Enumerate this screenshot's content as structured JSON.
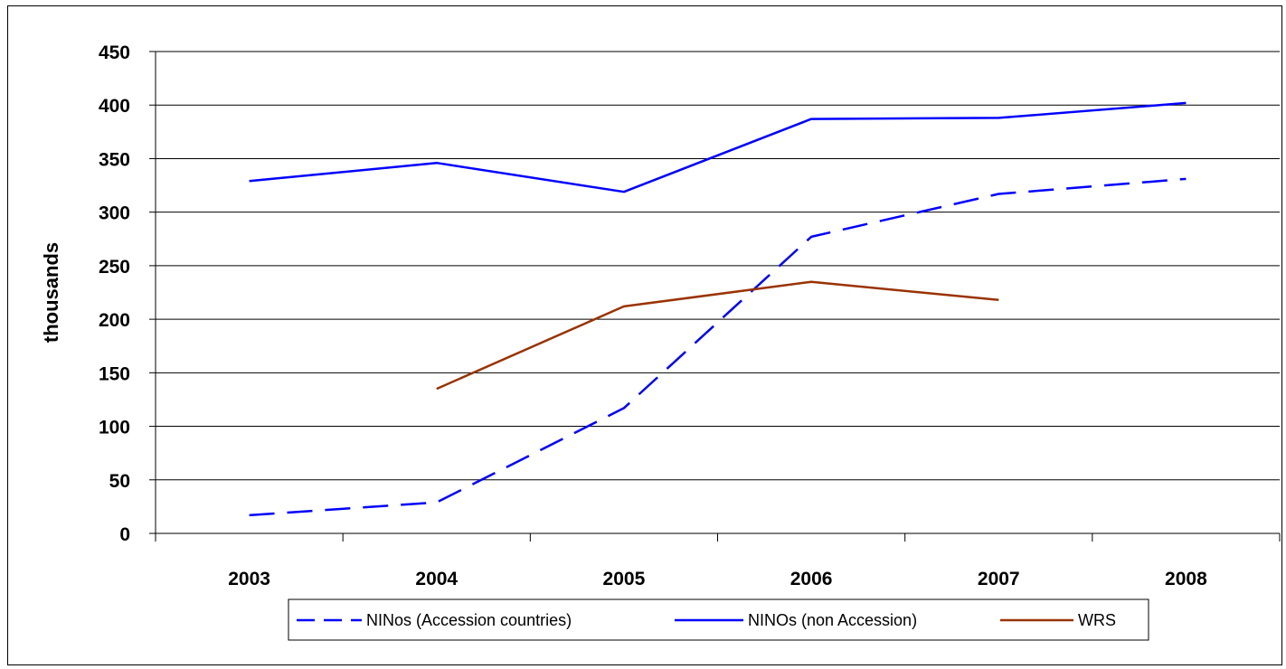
{
  "chart_data": {
    "type": "line",
    "title": "",
    "xlabel": "",
    "ylabel": "thousands",
    "x": [
      "2003",
      "2004",
      "2005",
      "2006",
      "2007",
      "2008"
    ],
    "ylim": [
      0,
      450
    ],
    "yticks": [
      "0",
      "50",
      "100",
      "150",
      "200",
      "250",
      "300",
      "350",
      "400",
      "450"
    ],
    "grid": true,
    "legend": "bottom",
    "series": [
      {
        "name": "NINos (Accession countries)",
        "color": "#0000ff",
        "style": "dashed",
        "values": [
          17,
          29,
          117,
          277,
          317,
          331
        ]
      },
      {
        "name": "NINOs (non Accession)",
        "color": "#0000ff",
        "style": "solid",
        "values": [
          329,
          346,
          319,
          387,
          388,
          402
        ]
      },
      {
        "name": "WRS",
        "color": "#993300",
        "style": "solid",
        "values": [
          null,
          135,
          212,
          235,
          218,
          null
        ]
      }
    ]
  }
}
